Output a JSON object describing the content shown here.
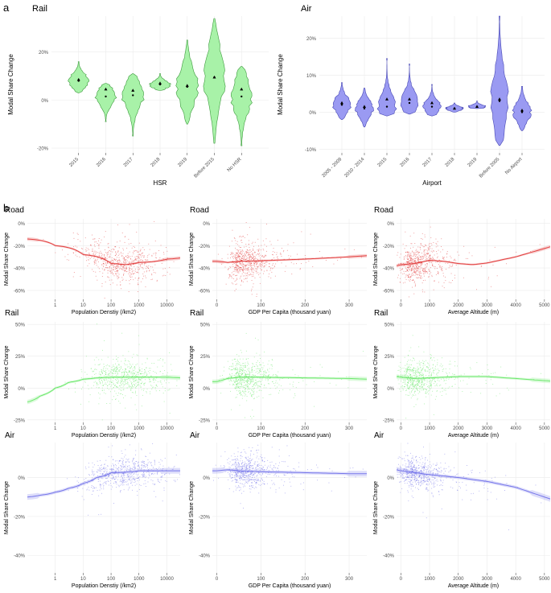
{
  "panel_labels": {
    "a": "a",
    "b": "b"
  },
  "colors": {
    "rail": "#5fe65f",
    "rail_fill": "#a8f2a8",
    "air": "#6a6ae8",
    "air_fill": "#9a9af2",
    "road": "#e03030",
    "grid": "#ebebeb",
    "axis_text": "#4d4d4d"
  },
  "chart_data": [
    {
      "id": "rail_violin",
      "type": "violin",
      "title": "Rail",
      "xlabel": "HSR",
      "ylabel": "Modal Share Change",
      "categories": [
        "2015",
        "2016",
        "2017",
        "2018",
        "2019",
        "Before 2015",
        "No HSR"
      ],
      "ylim": [
        -22,
        35
      ],
      "yticks": [
        -20,
        0,
        20
      ],
      "ytick_labels": [
        "-20%",
        "0%",
        "20%"
      ],
      "ranges": [
        [
          3,
          16
        ],
        [
          -9,
          7
        ],
        [
          -15,
          11
        ],
        [
          4,
          11
        ],
        [
          -10,
          25
        ],
        [
          -18,
          34
        ],
        [
          -19,
          14
        ]
      ],
      "means": [
        8.5,
        4.5,
        4,
        7,
        6,
        9.5,
        4.5
      ],
      "medians": [
        8,
        1.5,
        2,
        6.5,
        5.5,
        9.5,
        1.5
      ]
    },
    {
      "id": "air_violin",
      "type": "violin",
      "title": "Air",
      "xlabel": "Airport",
      "ylabel": "Modal Share Change",
      "categories": [
        "2005 - 2009",
        "2010 - 2014",
        "2015",
        "2016",
        "2017",
        "2018",
        "2019",
        "Before 2005",
        "No Airport"
      ],
      "ylim": [
        -11,
        26
      ],
      "yticks": [
        -10,
        0,
        10,
        20
      ],
      "ytick_labels": [
        "-10%",
        "0%",
        "10%",
        "20%"
      ],
      "ranges": [
        [
          -2,
          8
        ],
        [
          -4,
          6.5
        ],
        [
          -1,
          14.5
        ],
        [
          -0.5,
          13
        ],
        [
          -1,
          7.5
        ],
        [
          0,
          2.5
        ],
        [
          1,
          3
        ],
        [
          -9,
          26
        ],
        [
          -5,
          7
        ]
      ],
      "means": [
        2.5,
        1.5,
        3.5,
        3.5,
        2.5,
        1,
        1.5,
        3.5,
        0.5
      ],
      "medians": [
        2,
        1,
        1.5,
        2.5,
        1.5,
        1,
        1.5,
        3,
        0
      ]
    },
    {
      "id": "road_pop",
      "type": "scatter",
      "title": "Road",
      "xlabel": "Population Denstiy (/km2)",
      "ylabel": "Modal Share Change",
      "xscale": "log",
      "xlim": [
        0.1,
        30000
      ],
      "xticks": [
        1,
        10,
        100,
        1000,
        10000
      ],
      "xtick_labels": [
        "1",
        "10",
        "100",
        "1000",
        "10000"
      ],
      "ylim": [
        -68,
        4
      ],
      "yticks": [
        -60,
        -40,
        -20,
        0
      ],
      "ytick_labels": [
        "-60%",
        "-40%",
        "-20%",
        "0%"
      ],
      "trend_x": [
        0.1,
        1,
        10,
        100,
        300,
        1000,
        10000,
        30000
      ],
      "trend_y": [
        -14,
        -20,
        -28,
        -36,
        -37,
        -35,
        -32,
        -31
      ],
      "scatter_center_x": 200,
      "scatter_center_y": -37,
      "scatter_spread_y": 8
    },
    {
      "id": "road_gdp",
      "type": "scatter",
      "title": "Road",
      "xlabel": "GDP Per Capita (thousand yuan)",
      "ylabel": "Modal Share Change",
      "xscale": "linear",
      "xlim": [
        -10,
        340
      ],
      "xticks": [
        0,
        100,
        200,
        300
      ],
      "xtick_labels": [
        "0",
        "100",
        "200",
        "300"
      ],
      "ylim": [
        -68,
        4
      ],
      "yticks": [
        -60,
        -40,
        -20,
        0
      ],
      "ytick_labels": [
        "-60%",
        "-40%",
        "-20%",
        "0%"
      ],
      "trend_x": [
        0,
        25,
        50,
        100,
        200,
        300,
        340
      ],
      "trend_y": [
        -34,
        -35,
        -34,
        -33.5,
        -32,
        -30,
        -29
      ],
      "scatter_center_x": 40,
      "scatter_center_y": -36,
      "scatter_spread_y": 8
    },
    {
      "id": "road_alt",
      "type": "scatter",
      "title": "Road",
      "xlabel": "Average Altitude (m)",
      "ylabel": "Modal Share Change",
      "xscale": "linear",
      "xlim": [
        -150,
        5200
      ],
      "xticks": [
        0,
        1000,
        2000,
        3000,
        4000,
        5000
      ],
      "xtick_labels": [
        "0",
        "1000",
        "2000",
        "3000",
        "4000",
        "5000"
      ],
      "ylim": [
        -68,
        4
      ],
      "yticks": [
        -60,
        -40,
        -20,
        0
      ],
      "ytick_labels": [
        "-60%",
        "-40%",
        "-20%",
        "0%"
      ],
      "trend_x": [
        -150,
        0,
        500,
        1000,
        1500,
        2000,
        2500,
        3000,
        4000,
        5200
      ],
      "trend_y": [
        -38,
        -37,
        -36,
        -33,
        -34,
        -36,
        -37,
        -35.5,
        -30,
        -21
      ],
      "scatter_center_x": 200,
      "scatter_center_y": -37,
      "scatter_spread_y": 8
    },
    {
      "id": "rail_pop",
      "type": "scatter",
      "title": "Rail",
      "xlabel": "Population Denstiy (/km2)",
      "ylabel": "Modal Share Change",
      "xscale": "log",
      "xlim": [
        0.1,
        30000
      ],
      "xticks": [
        1,
        10,
        100,
        1000,
        10000
      ],
      "xtick_labels": [
        "1",
        "10",
        "100",
        "1000",
        "10000"
      ],
      "ylim": [
        -27,
        52
      ],
      "yticks": [
        -25,
        0,
        25,
        50
      ],
      "ytick_labels": [
        "-25%",
        "0%",
        "25%",
        "50%"
      ],
      "trend_x": [
        0.1,
        0.3,
        1,
        3,
        10,
        30,
        100,
        1000,
        10000,
        30000
      ],
      "trend_y": [
        -11,
        -6,
        0,
        4.5,
        7,
        8,
        8.5,
        8.5,
        8.5,
        8
      ],
      "scatter_center_x": 300,
      "scatter_center_y": 8,
      "scatter_spread_y": 7
    },
    {
      "id": "rail_gdp",
      "type": "scatter",
      "title": "Rail",
      "xlabel": "GDP Per Capita (thousand yuan)",
      "ylabel": "Modal Share Change",
      "xscale": "linear",
      "xlim": [
        -10,
        340
      ],
      "xticks": [
        0,
        100,
        200,
        300
      ],
      "xtick_labels": [
        "0",
        "100",
        "200",
        "300"
      ],
      "ylim": [
        -27,
        52
      ],
      "yticks": [
        -25,
        0,
        25,
        50
      ],
      "ytick_labels": [
        "-25%",
        "0%",
        "25%",
        "50%"
      ],
      "trend_x": [
        0,
        25,
        50,
        100,
        200,
        300,
        340
      ],
      "trend_y": [
        5,
        7.5,
        8.5,
        8.5,
        8,
        7.5,
        7
      ],
      "scatter_center_x": 40,
      "scatter_center_y": 8,
      "scatter_spread_y": 7
    },
    {
      "id": "rail_alt",
      "type": "scatter",
      "title": "Rail",
      "xlabel": "Average Altitude (m)",
      "ylabel": "Modal Share Change",
      "xscale": "linear",
      "xlim": [
        -150,
        5200
      ],
      "xticks": [
        0,
        1000,
        2000,
        3000,
        4000,
        5000
      ],
      "xtick_labels": [
        "0",
        "1000",
        "2000",
        "3000",
        "4000",
        "5000"
      ],
      "ylim": [
        -27,
        52
      ],
      "yticks": [
        -25,
        0,
        25,
        50
      ],
      "ytick_labels": [
        "-25%",
        "0%",
        "25%",
        "50%"
      ],
      "trend_x": [
        -150,
        0,
        500,
        1000,
        2000,
        3000,
        4000,
        5200
      ],
      "trend_y": [
        9,
        8.5,
        7.5,
        8,
        9,
        9,
        7.5,
        5.5
      ],
      "scatter_center_x": 200,
      "scatter_center_y": 8,
      "scatter_spread_y": 7
    },
    {
      "id": "air_pop",
      "type": "scatter",
      "title": "Air",
      "xlabel": "Population Denstiy (/km2)",
      "ylabel": "Modal Share Change",
      "xscale": "log",
      "xlim": [
        0.1,
        30000
      ],
      "xticks": [
        1,
        10,
        100,
        1000,
        10000
      ],
      "xtick_labels": [
        "1",
        "10",
        "100",
        "1000",
        "10000"
      ],
      "ylim": [
        -49,
        18
      ],
      "yticks": [
        -40,
        -20,
        0
      ],
      "ytick_labels": [
        "-40%",
        "-20%",
        "0%"
      ],
      "trend_x": [
        0.1,
        0.3,
        1,
        3,
        10,
        30,
        100,
        1000,
        10000,
        30000
      ],
      "trend_y": [
        -10,
        -9,
        -7.5,
        -5.5,
        -3,
        0,
        2.5,
        3.5,
        3.5,
        3.5
      ],
      "scatter_center_x": 300,
      "scatter_center_y": 3,
      "scatter_spread_y": 4
    },
    {
      "id": "air_gdp",
      "type": "scatter",
      "title": "Air",
      "xlabel": "GDP Per Capita (thousand yuan)",
      "ylabel": "Modal Share Change",
      "xscale": "linear",
      "xlim": [
        -10,
        340
      ],
      "xticks": [
        0,
        100,
        200,
        300
      ],
      "xtick_labels": [
        "0",
        "100",
        "200",
        "300"
      ],
      "ylim": [
        -49,
        18
      ],
      "yticks": [
        -40,
        -20,
        0
      ],
      "ytick_labels": [
        "-40%",
        "-20%",
        "0%"
      ],
      "trend_x": [
        0,
        25,
        50,
        100,
        200,
        300,
        340
      ],
      "trend_y": [
        3.5,
        4,
        3.5,
        3,
        2.5,
        2,
        2
      ],
      "scatter_center_x": 40,
      "scatter_center_y": 3,
      "scatter_spread_y": 4
    },
    {
      "id": "air_alt",
      "type": "scatter",
      "title": "Air",
      "xlabel": "Average Altitude (m)",
      "ylabel": "Modal Share Change",
      "xscale": "linear",
      "xlim": [
        -150,
        5200
      ],
      "xticks": [
        0,
        1000,
        2000,
        3000,
        4000,
        5000
      ],
      "xtick_labels": [
        "0",
        "1000",
        "2000",
        "3000",
        "4000",
        "5000"
      ],
      "ylim": [
        -49,
        18
      ],
      "yticks": [
        -40,
        -20,
        0
      ],
      "ytick_labels": [
        "-40%",
        "-20%",
        "0%"
      ],
      "trend_x": [
        -150,
        0,
        500,
        1000,
        2000,
        3000,
        4000,
        5200
      ],
      "trend_y": [
        4,
        3.5,
        2.5,
        1.5,
        0,
        -2,
        -5,
        -11
      ],
      "scatter_center_x": 200,
      "scatter_center_y": 3,
      "scatter_spread_y": 4
    }
  ]
}
